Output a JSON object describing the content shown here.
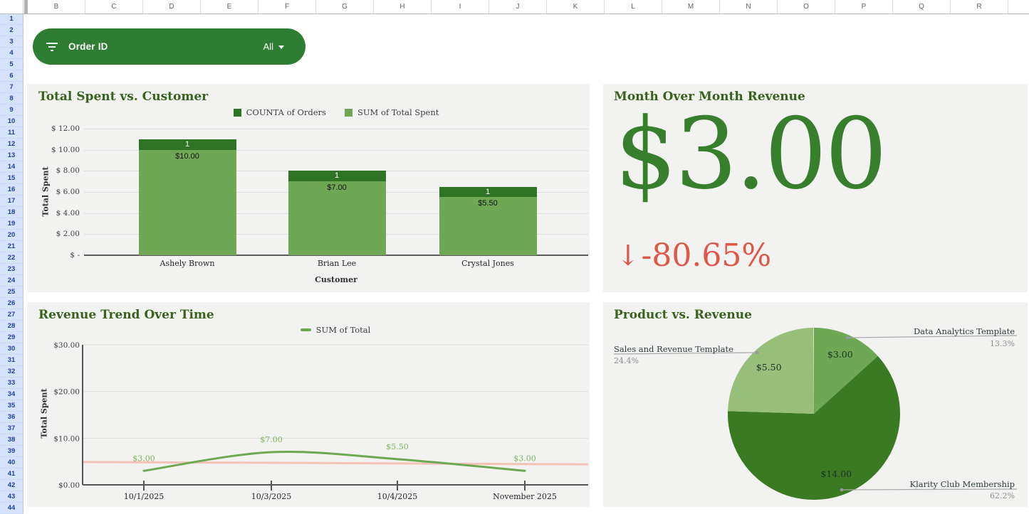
{
  "sheet": {
    "column_headers": [
      "B",
      "C",
      "D",
      "E",
      "F",
      "G",
      "H",
      "I",
      "J",
      "K",
      "L",
      "M",
      "N",
      "O",
      "P",
      "Q",
      "R"
    ],
    "row_first": 1,
    "row_last": 44
  },
  "slicer": {
    "label": "Order ID",
    "value": "All"
  },
  "chart_data": [
    {
      "type": "bar",
      "title": "Total Spent vs. Customer",
      "stacked": true,
      "categories": [
        "Ashely Brown",
        "Brian Lee",
        "Crystal Jones"
      ],
      "series": [
        {
          "name": "SUM of Total Spent",
          "values": [
            10,
            7,
            5.5
          ],
          "value_labels": [
            "$10.00",
            "$7.00",
            "$5.50"
          ],
          "color": "#6ea855"
        },
        {
          "name": "COUNTA of Orders",
          "values": [
            1,
            1,
            1
          ],
          "value_labels": [
            "1",
            "1",
            "1"
          ],
          "color": "#2f7325"
        }
      ],
      "legend": [
        {
          "label": "COUNTA of Orders",
          "color": "#2f7325"
        },
        {
          "label": "SUM of Total Spent",
          "color": "#6ea855"
        }
      ],
      "xlabel": "Customer",
      "ylabel": "Total Spent",
      "ylim": [
        0,
        12
      ],
      "yticks": [
        {
          "v": 12,
          "label": "$ 12.00"
        },
        {
          "v": 10,
          "label": "$ 10.00"
        },
        {
          "v": 8,
          "label": "$ 8.00"
        },
        {
          "v": 6,
          "label": "$ 6.00"
        },
        {
          "v": 4,
          "label": "$ 4.00"
        },
        {
          "v": 2,
          "label": "$ 2.00"
        },
        {
          "v": 0,
          "label": "$ -"
        }
      ],
      "grid": true,
      "legend_position": "top"
    },
    {
      "type": "scorecard",
      "title": "Month Over Month Revenue",
      "value": "$3.00",
      "delta_arrow": "↓",
      "delta": "-80.65%",
      "value_color": "#377f2d",
      "delta_color": "#df5749"
    },
    {
      "type": "line",
      "title": "Revenue Trend Over Time",
      "x": [
        "10/1/2025",
        "10/3/2025",
        "10/4/2025",
        "November 2025"
      ],
      "series": [
        {
          "name": "SUM of Total",
          "values": [
            3,
            7,
            5.5,
            3
          ],
          "point_labels": [
            "$3.00",
            "$7.00",
            "$5.50",
            "$3.00"
          ],
          "color": "#6ea855",
          "label_color": "#7db55f"
        }
      ],
      "trendline": {
        "start": 4.9,
        "end": 4.4,
        "color": "#f2c4b8"
      },
      "ylabel": "Total Spent",
      "ylim": [
        0,
        30
      ],
      "yticks": [
        {
          "v": 30,
          "label": "$30.00"
        },
        {
          "v": 20,
          "label": "$20.00"
        },
        {
          "v": 10,
          "label": "$10.00"
        },
        {
          "v": 0,
          "label": "$0.00"
        }
      ],
      "legend": [
        {
          "label": "SUM of Total",
          "color": "#6ea855"
        }
      ],
      "grid": true,
      "legend_position": "top"
    },
    {
      "type": "pie",
      "title": "Product vs. Revenue",
      "slices": [
        {
          "label": "Data Analytics Template",
          "pct": 13.3,
          "pct_label": "13.3%",
          "value_label": "$3.00",
          "color": "#6ea855"
        },
        {
          "label": "Klarity Club Membership",
          "pct": 62.2,
          "pct_label": "62.2%",
          "value_label": "$14.00",
          "color": "#3a7a23"
        },
        {
          "label": "Sales and Revenue Template",
          "pct": 24.4,
          "pct_label": "24.4%",
          "value_label": "$5.50",
          "color": "#97bf7a"
        }
      ]
    }
  ]
}
